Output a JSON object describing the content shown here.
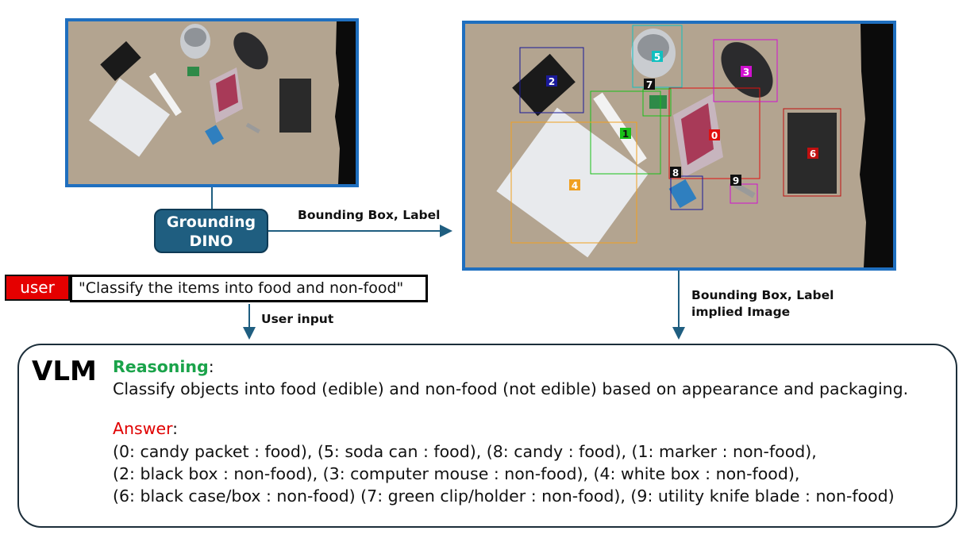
{
  "flow": {
    "grounding_dino_line1": "Grounding",
    "grounding_dino_line2": "DINO",
    "edge_label_top": "Bounding Box, Label",
    "edge_label_right_line1": "Bounding Box, Label",
    "edge_label_right_line2": "implied Image",
    "edge_label_user": "User input"
  },
  "user": {
    "tag": "user",
    "prompt": "\"Classify the items into food and non-food\""
  },
  "detections": [
    {
      "id": "0",
      "color": "#e01010"
    },
    {
      "id": "1",
      "color": "#18c018"
    },
    {
      "id": "2",
      "color": "#1a1a9a"
    },
    {
      "id": "3",
      "color": "#d010d0"
    },
    {
      "id": "4",
      "color": "#f0a020"
    },
    {
      "id": "5",
      "color": "#10c0c0"
    },
    {
      "id": "6",
      "color": "#c01010"
    },
    {
      "id": "7",
      "color": "#111111"
    },
    {
      "id": "8",
      "color": "#111111"
    },
    {
      "id": "9",
      "color": "#111111"
    }
  ],
  "vlm": {
    "title": "VLM",
    "reasoning_heading": "Reasoning",
    "reasoning_colon": ":",
    "reasoning_text": "Classify objects into food (edible) and non-food (not edible) based on appearance and packaging.",
    "answer_heading": "Answer",
    "answer_colon": ":",
    "answer_lines": [
      "(0: candy packet : food), (5: soda can : food), (8: candy : food), (1: marker : non-food),",
      "(2: black box : non-food), (3: computer mouse : non-food), (4: white box : non-food),",
      "(6: black case/box : non-food) (7: green clip/holder : non-food), (9: utility knife blade : non-food)"
    ]
  },
  "colors": {
    "frame_blue": "#1f6fbf",
    "node_fill": "#1f5e80",
    "arrow": "#1f5e80",
    "reasoning_green": "#1aa34a",
    "answer_red": "#e00000",
    "user_red": "#e50000"
  }
}
